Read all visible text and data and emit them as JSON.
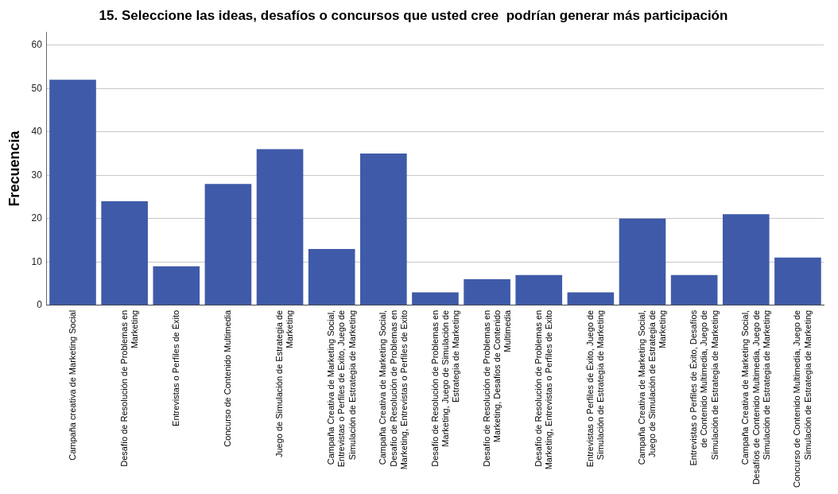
{
  "chart_data": {
    "type": "bar",
    "title": "15. Seleccione las ideas, desafíos o concursos que usted cree  podrían generar más participación",
    "ylabel": "Frecuencia",
    "categories": [
      "Campaña creativa de Marketing Social",
      "Desafío de Resolución de Problemas en Marketing",
      "Entrevistas o Perfiles de Éxito",
      "Concurso de Contenido Multimedia",
      "Juego de Simulación de Estrategia de Marketing",
      "Campaña Creativa de Marketing Social, Entrevistas o Perfiles de Exito, Juego de Simulación de Estrategia de Marketing",
      "Campaña Creativa de Marketing Social, Desafío de Resolución de Problemas en Marketing, Entrevistas o Perfiles de Exito",
      "Desafío de Resolución de Problemas en Marketing, Juego de Simulación de Estrategia de Marketing",
      "Desafío de Resolución de Problemas en Marketing, Desafíos de Contenido Multimedia",
      "Desafío de Resolución de Problemas en Marketing, Entrevistas o Perfiles de Exito",
      "Entrevistas o Perfiles de Éxito, Juego de Simulación de Estrategia de Marketing",
      "Campaña Creativa de Marketing Social, Juego de Simulación de Estrategia de Marketing",
      "Entrevistas o Perfiles de Éxito, Desafíos de Contenido Multimedia, Juego de Simulación de Estrategia de Marketing",
      "Campaña Creativa de Marketing Social, Desafíos de Contenido Multimedia, Juego de Simulación de Estrategia de Marketing",
      "Concurso de Contenido Multimedia, Juego de Simulación de Estrategia de Marketing"
    ],
    "values": [
      52,
      24,
      9,
      28,
      36,
      13,
      35,
      3,
      6,
      7,
      3,
      20,
      7,
      21,
      11
    ],
    "color": "#3f5aa8",
    "ylim": [
      0,
      63
    ],
    "yticks": [
      0,
      10,
      20,
      30,
      40,
      50,
      60
    ],
    "grid": "y"
  }
}
